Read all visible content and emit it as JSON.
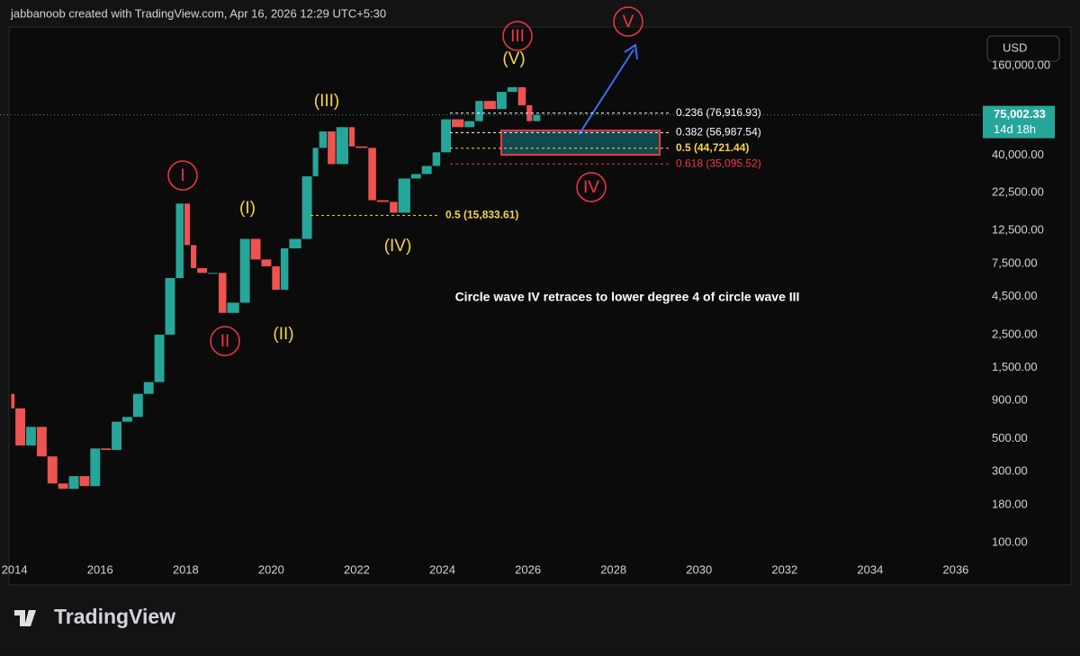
{
  "header": "jabbanoob created with TradingView.com, Apr 16, 2026 12:29 UTC+5:30",
  "currency_button": "USD",
  "footer_logo": "TradingView",
  "chart_data": {
    "type": "candlestick",
    "log_scale": true,
    "up_color": "#26a69a",
    "down_color": "#ef5350",
    "x": [
      2013.9,
      2014.0,
      2014.25,
      2014.5,
      2014.75,
      2015.0,
      2015.25,
      2015.5,
      2015.75,
      2016.0,
      2016.25,
      2016.5,
      2016.75,
      2017.0,
      2017.25,
      2017.5,
      2017.75,
      2017.95,
      2018.1,
      2018.25,
      2018.5,
      2018.75,
      2018.95,
      2019.25,
      2019.5,
      2019.75,
      2020.0,
      2020.2,
      2020.4,
      2020.7,
      2020.95,
      2021.1,
      2021.3,
      2021.5,
      2021.8,
      2021.95,
      2022.25,
      2022.45,
      2022.75,
      2022.95,
      2023.25,
      2023.5,
      2023.75,
      2023.95,
      2024.2,
      2024.5,
      2024.75,
      2024.95,
      2025.25,
      2025.5,
      2025.75,
      2025.95,
      2026.1,
      2026.29
    ],
    "values": [
      1000,
      800,
      450,
      600,
      380,
      250,
      230,
      280,
      240,
      430,
      420,
      650,
      700,
      1000,
      1200,
      2500,
      6000,
      19000,
      10000,
      7000,
      6500,
      6500,
      3500,
      4100,
      11000,
      8000,
      7200,
      5000,
      9500,
      11000,
      29000,
      45000,
      58000,
      35000,
      62000,
      46000,
      45000,
      20000,
      19500,
      16500,
      28000,
      30000,
      34000,
      42000,
      70000,
      62000,
      68000,
      93000,
      82000,
      107000,
      115000,
      87000,
      68000,
      75002.33
    ],
    "xlim": [
      2013.66,
      2036.59
    ],
    "xticks": [
      2014,
      2016,
      2018,
      2020,
      2022,
      2024,
      2026,
      2028,
      2030,
      2032,
      2034,
      2036
    ],
    "ylim": [
      79,
      292000
    ],
    "yticks": [
      {
        "value": 100,
        "label": "100.00"
      },
      {
        "value": 180,
        "label": "180.00"
      },
      {
        "value": 300,
        "label": "300.00"
      },
      {
        "value": 500,
        "label": "500.00"
      },
      {
        "value": 900,
        "label": "900.00"
      },
      {
        "value": 1500,
        "label": "1,500.00"
      },
      {
        "value": 2500,
        "label": "2,500.00"
      },
      {
        "value": 4500,
        "label": "4,500.00"
      },
      {
        "value": 7500,
        "label": "7,500.00"
      },
      {
        "value": 12500,
        "label": "12,500.00"
      },
      {
        "value": 22500,
        "label": "22,500.00"
      },
      {
        "value": 40000,
        "label": "40,000.00"
      },
      {
        "value": 160000,
        "label": "160,000.00"
      }
    ],
    "current_price": {
      "value": 75002.33,
      "label": "75,002.33"
    },
    "countdown": "14d 18h",
    "fib_levels": [
      {
        "value": 76916.93,
        "label": "0.236 (76,916.93)",
        "color": "#ffffff"
      },
      {
        "value": 56987.54,
        "label": "0.382 (56,987.54)",
        "color": "#ffffff"
      },
      {
        "value": 44721.44,
        "label": "0.5 (44,721.44)",
        "color": "#f5d547"
      },
      {
        "value": 35095.52,
        "label": "0.618 (35,095.52)",
        "color": "#f23645"
      }
    ],
    "fib_level_lower": {
      "value": 15833.61,
      "label": "0.5 (15,833.61)",
      "color": "#f5d547"
    },
    "waves": [
      {
        "label": "I",
        "color": "#f23645"
      },
      {
        "label": "II",
        "color": "#f23645"
      },
      {
        "label": "III",
        "color": "#f23645"
      },
      {
        "label": "IV",
        "color": "#f23645"
      },
      {
        "label": "V",
        "color": "#f23645"
      },
      {
        "label": "(I)",
        "color": "#f5d547"
      },
      {
        "label": "(II)",
        "color": "#f5d547"
      },
      {
        "label": "(III)",
        "color": "#f5d547"
      },
      {
        "label": "(IV)",
        "color": "#f5d547"
      },
      {
        "label": "(V)",
        "color": "#f5d547"
      }
    ],
    "annotation": "Circle wave IV retraces to lower degree 4 of circle wave III"
  }
}
